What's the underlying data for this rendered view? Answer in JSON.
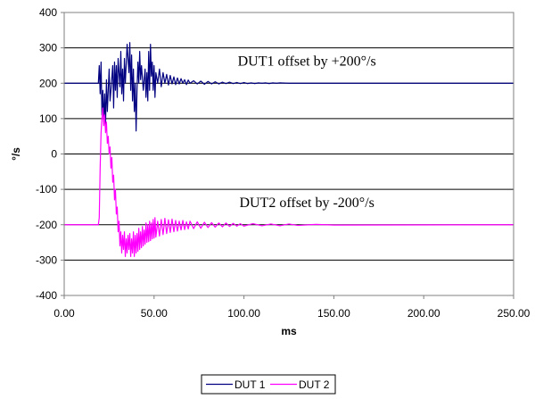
{
  "chart_data": {
    "type": "line",
    "xlabel": "ms",
    "ylabel": "°/s",
    "xlim": [
      0,
      250
    ],
    "ylim": [
      -400,
      400
    ],
    "x_ticks": [
      0,
      50,
      100,
      150,
      200,
      250
    ],
    "x_tick_labels": [
      "0.00",
      "50.00",
      "100.00",
      "150.00",
      "200.00",
      "250.00"
    ],
    "y_ticks": [
      -400,
      -300,
      -200,
      -100,
      0,
      100,
      200,
      300,
      400
    ],
    "y_tick_labels": [
      "-400",
      "-300",
      "-200",
      "-100",
      "0",
      "100",
      "200",
      "300",
      "400"
    ],
    "grid": "horizontal",
    "legend_position": "bottom",
    "annotations": [
      {
        "text": "DUT1 offset by +200°/s",
        "x": 135,
        "y": 250
      },
      {
        "text": "DUT2 offset by -200°/s",
        "x": 135,
        "y": -150
      }
    ],
    "series": [
      {
        "name": "DUT 1",
        "color": "#000080",
        "baseline": 200,
        "points": [
          [
            0,
            200
          ],
          [
            19,
            200
          ],
          [
            19.5,
            250
          ],
          [
            20,
            170
          ],
          [
            20.5,
            260
          ],
          [
            21,
            110
          ],
          [
            21.5,
            180
          ],
          [
            22,
            90
          ],
          [
            22.5,
            170
          ],
          [
            23,
            80
          ],
          [
            23.5,
            210
          ],
          [
            24,
            120
          ],
          [
            25,
            240
          ],
          [
            25.5,
            150
          ],
          [
            26,
            180
          ],
          [
            27,
            250
          ],
          [
            27.5,
            130
          ],
          [
            28,
            260
          ],
          [
            28.5,
            180
          ],
          [
            29,
            250
          ],
          [
            29.5,
            160
          ],
          [
            30,
            270
          ],
          [
            31,
            190
          ],
          [
            31.5,
            290
          ],
          [
            32,
            170
          ],
          [
            32.5,
            240
          ],
          [
            33,
            150
          ],
          [
            33.5,
            270
          ],
          [
            34,
            200
          ],
          [
            35,
            310
          ],
          [
            36,
            230
          ],
          [
            36.5,
            315
          ],
          [
            37,
            180
          ],
          [
            37.5,
            280
          ],
          [
            38,
            150
          ],
          [
            38.5,
            240
          ],
          [
            39,
            120
          ],
          [
            39.5,
            200
          ],
          [
            40,
            65
          ],
          [
            40.5,
            180
          ],
          [
            41,
            260
          ],
          [
            41.5,
            200
          ],
          [
            42,
            290
          ],
          [
            42.5,
            210
          ],
          [
            43,
            250
          ],
          [
            44,
            180
          ],
          [
            45,
            240
          ],
          [
            45.5,
            160
          ],
          [
            46,
            230
          ],
          [
            46.5,
            150
          ],
          [
            47,
            290
          ],
          [
            47.5,
            180
          ],
          [
            48,
            310
          ],
          [
            48.5,
            220
          ],
          [
            49,
            260
          ],
          [
            49.5,
            180
          ],
          [
            50,
            250
          ],
          [
            50.5,
            160
          ],
          [
            51,
            230
          ],
          [
            52,
            200
          ],
          [
            53,
            240
          ],
          [
            54,
            190
          ],
          [
            55,
            230
          ],
          [
            56,
            200
          ],
          [
            57,
            225
          ],
          [
            58,
            195
          ],
          [
            59,
            222
          ],
          [
            60,
            198
          ],
          [
            61,
            218
          ],
          [
            62,
            196
          ],
          [
            63,
            215
          ],
          [
            64,
            198
          ],
          [
            65,
            213
          ],
          [
            66,
            200
          ],
          [
            67,
            210
          ],
          [
            68,
            196
          ],
          [
            69,
            209
          ],
          [
            70,
            200
          ],
          [
            72,
            207
          ],
          [
            74,
            198
          ],
          [
            76,
            206
          ],
          [
            78,
            197
          ],
          [
            80,
            205
          ],
          [
            82,
            198
          ],
          [
            84,
            204
          ],
          [
            86,
            198
          ],
          [
            88,
            203
          ],
          [
            90,
            199
          ],
          [
            92,
            203
          ],
          [
            94,
            199
          ],
          [
            96,
            202
          ],
          [
            98,
            199
          ],
          [
            100,
            202
          ],
          [
            102,
            199
          ],
          [
            104,
            201
          ],
          [
            106,
            199
          ],
          [
            108,
            201
          ],
          [
            110,
            200
          ],
          [
            112,
            201
          ],
          [
            114,
            199
          ],
          [
            116,
            201
          ],
          [
            118,
            200
          ],
          [
            120,
            201
          ],
          [
            125,
            200
          ],
          [
            250,
            200
          ]
        ]
      },
      {
        "name": "DUT 2",
        "color": "#FF00FF",
        "baseline": -200,
        "points": [
          [
            0,
            -200
          ],
          [
            19,
            -200
          ],
          [
            19.5,
            -180
          ],
          [
            20,
            -40
          ],
          [
            20.5,
            60
          ],
          [
            21,
            100
          ],
          [
            21.5,
            130
          ],
          [
            22,
            80
          ],
          [
            22.5,
            110
          ],
          [
            23,
            60
          ],
          [
            23.5,
            90
          ],
          [
            24,
            30
          ],
          [
            24.5,
            50
          ],
          [
            25,
            0
          ],
          [
            25.5,
            20
          ],
          [
            26,
            -40
          ],
          [
            26.5,
            -10
          ],
          [
            27,
            -80
          ],
          [
            27.5,
            -60
          ],
          [
            28,
            -130
          ],
          [
            28.5,
            -100
          ],
          [
            29,
            -170
          ],
          [
            29.5,
            -150
          ],
          [
            30,
            -220
          ],
          [
            30.5,
            -190
          ],
          [
            31,
            -260
          ],
          [
            31.5,
            -220
          ],
          [
            32,
            -280
          ],
          [
            32.5,
            -230
          ],
          [
            33,
            -270
          ],
          [
            33.5,
            -220
          ],
          [
            34,
            -290
          ],
          [
            34.5,
            -240
          ],
          [
            35,
            -280
          ],
          [
            35.5,
            -230
          ],
          [
            36,
            -270
          ],
          [
            36.5,
            -225
          ],
          [
            37,
            -290
          ],
          [
            37.5,
            -240
          ],
          [
            38,
            -280
          ],
          [
            38.5,
            -220
          ],
          [
            39,
            -290
          ],
          [
            39.5,
            -230
          ],
          [
            40,
            -280
          ],
          [
            40.5,
            -225
          ],
          [
            41,
            -275
          ],
          [
            41.5,
            -210
          ],
          [
            42,
            -270
          ],
          [
            42.5,
            -220
          ],
          [
            43,
            -265
          ],
          [
            43.5,
            -205
          ],
          [
            44,
            -260
          ],
          [
            44.5,
            -215
          ],
          [
            45,
            -255
          ],
          [
            45.5,
            -195
          ],
          [
            46,
            -250
          ],
          [
            46.5,
            -200
          ],
          [
            47,
            -248
          ],
          [
            47.5,
            -190
          ],
          [
            48,
            -245
          ],
          [
            48.5,
            -195
          ],
          [
            49,
            -240
          ],
          [
            49.5,
            -185
          ],
          [
            50,
            -238
          ],
          [
            50.5,
            -180
          ],
          [
            51,
            -235
          ],
          [
            52,
            -190
          ],
          [
            53,
            -232
          ],
          [
            54,
            -185
          ],
          [
            55,
            -228
          ],
          [
            56,
            -182
          ],
          [
            57,
            -225
          ],
          [
            58,
            -186
          ],
          [
            59,
            -222
          ],
          [
            60,
            -184
          ],
          [
            61,
            -220
          ],
          [
            62,
            -188
          ],
          [
            63,
            -218
          ],
          [
            64,
            -190
          ],
          [
            65,
            -215
          ],
          [
            66,
            -188
          ],
          [
            67,
            -214
          ],
          [
            68,
            -192
          ],
          [
            69,
            -212
          ],
          [
            70,
            -190
          ],
          [
            72,
            -211
          ],
          [
            74,
            -192
          ],
          [
            76,
            -210
          ],
          [
            78,
            -193
          ],
          [
            80,
            -208
          ],
          [
            82,
            -194
          ],
          [
            84,
            -207
          ],
          [
            86,
            -195
          ],
          [
            88,
            -206
          ],
          [
            90,
            -195
          ],
          [
            92,
            -205
          ],
          [
            94,
            -196
          ],
          [
            96,
            -204
          ],
          [
            98,
            -197
          ],
          [
            100,
            -204
          ],
          [
            105,
            -197
          ],
          [
            110,
            -203
          ],
          [
            115,
            -198
          ],
          [
            120,
            -203
          ],
          [
            125,
            -198
          ],
          [
            130,
            -202
          ],
          [
            140,
            -199
          ],
          [
            150,
            -201
          ],
          [
            250,
            -200
          ]
        ]
      }
    ]
  }
}
